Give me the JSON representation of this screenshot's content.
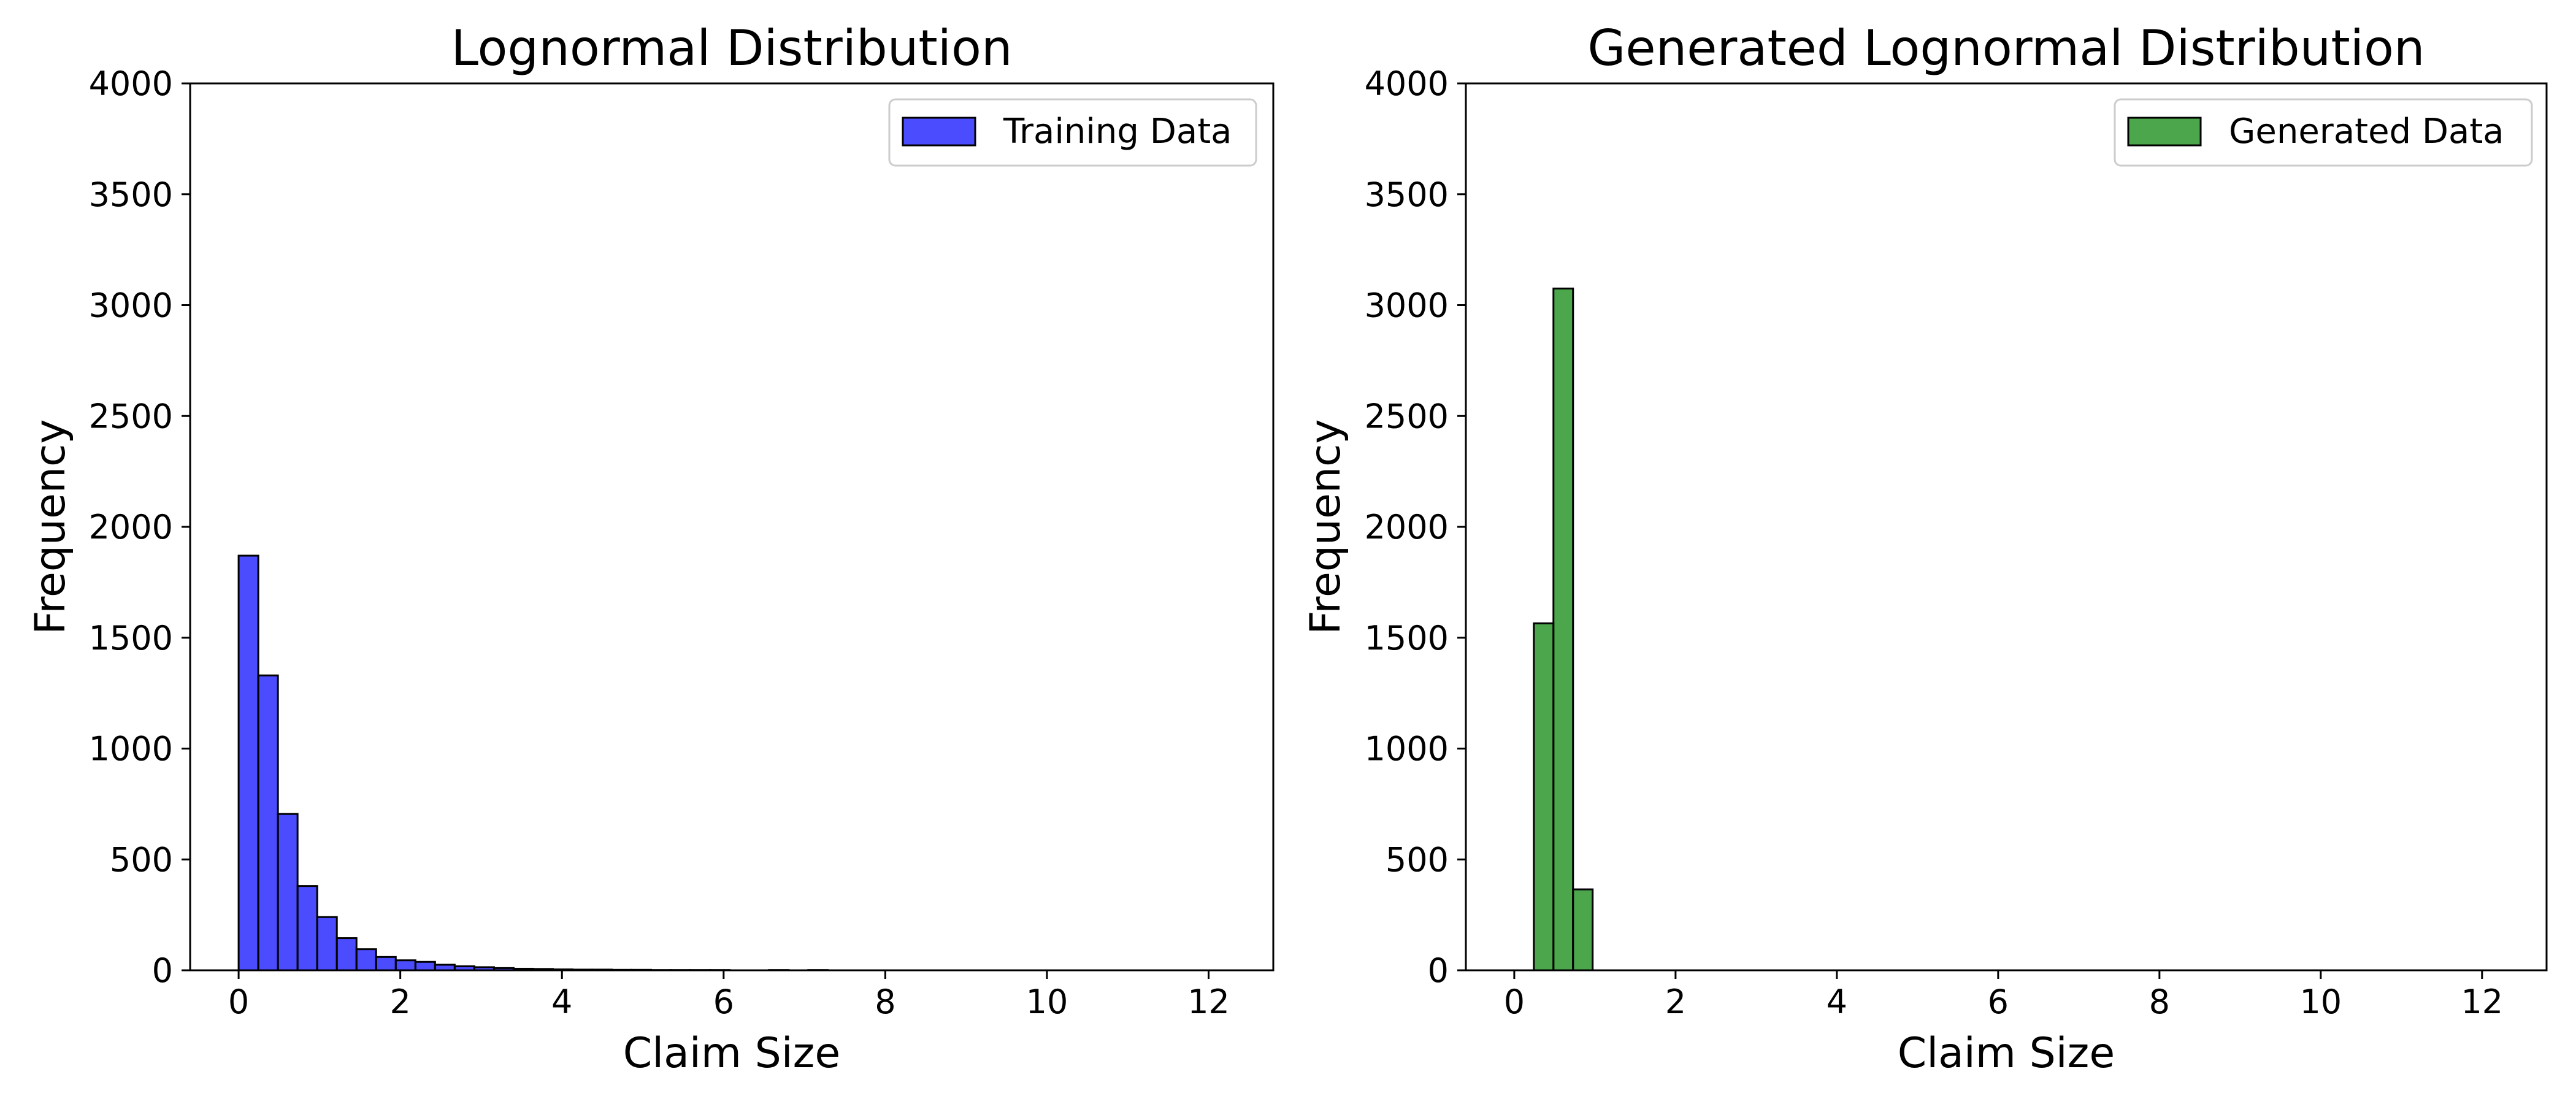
{
  "chart_data": [
    {
      "type": "histogram",
      "title": "Lognormal Distribution",
      "xlabel": "Claim Size",
      "ylabel": "Frequency",
      "xlim": [
        -0.6,
        12.8
      ],
      "ylim": [
        0,
        4000
      ],
      "xticks": [
        0,
        2,
        4,
        6,
        8,
        10,
        12
      ],
      "yticks": [
        0,
        500,
        1000,
        1500,
        2000,
        2500,
        3000,
        3500,
        4000
      ],
      "bin_width": 0.243,
      "legend": {
        "position": "top-right",
        "entries": [
          "Training Data"
        ]
      },
      "grid": false,
      "series": [
        {
          "name": "Training Data",
          "color": "#0000ff",
          "bins": [
            {
              "x0": 0.0,
              "x1": 0.243,
              "count": 1870
            },
            {
              "x0": 0.243,
              "x1": 0.486,
              "count": 1330
            },
            {
              "x0": 0.486,
              "x1": 0.729,
              "count": 705
            },
            {
              "x0": 0.729,
              "x1": 0.972,
              "count": 380
            },
            {
              "x0": 0.972,
              "x1": 1.215,
              "count": 240
            },
            {
              "x0": 1.215,
              "x1": 1.458,
              "count": 145
            },
            {
              "x0": 1.458,
              "x1": 1.701,
              "count": 95
            },
            {
              "x0": 1.701,
              "x1": 1.944,
              "count": 60
            },
            {
              "x0": 1.944,
              "x1": 2.187,
              "count": 45
            },
            {
              "x0": 2.187,
              "x1": 2.43,
              "count": 38
            },
            {
              "x0": 2.43,
              "x1": 2.673,
              "count": 25
            },
            {
              "x0": 2.673,
              "x1": 2.916,
              "count": 18
            },
            {
              "x0": 2.916,
              "x1": 3.159,
              "count": 14
            },
            {
              "x0": 3.159,
              "x1": 3.402,
              "count": 10
            },
            {
              "x0": 3.402,
              "x1": 3.645,
              "count": 7
            },
            {
              "x0": 3.645,
              "x1": 3.888,
              "count": 6
            },
            {
              "x0": 3.888,
              "x1": 4.131,
              "count": 4
            },
            {
              "x0": 4.131,
              "x1": 4.374,
              "count": 3
            },
            {
              "x0": 4.374,
              "x1": 4.617,
              "count": 3
            },
            {
              "x0": 4.617,
              "x1": 4.86,
              "count": 2
            },
            {
              "x0": 4.86,
              "x1": 5.103,
              "count": 2
            },
            {
              "x0": 5.103,
              "x1": 5.346,
              "count": 1
            },
            {
              "x0": 5.346,
              "x1": 5.589,
              "count": 1
            },
            {
              "x0": 5.589,
              "x1": 5.832,
              "count": 1
            },
            {
              "x0": 5.832,
              "x1": 6.075,
              "count": 1
            },
            {
              "x0": 6.561,
              "x1": 6.804,
              "count": 1
            },
            {
              "x0": 7.047,
              "x1": 7.29,
              "count": 1
            }
          ]
        }
      ]
    },
    {
      "type": "histogram",
      "title": "Generated Lognormal Distribution",
      "xlabel": "Claim Size",
      "ylabel": "Frequency",
      "xlim": [
        -0.6,
        12.8
      ],
      "ylim": [
        0,
        4000
      ],
      "xticks": [
        0,
        2,
        4,
        6,
        8,
        10,
        12
      ],
      "yticks": [
        0,
        500,
        1000,
        1500,
        2000,
        2500,
        3000,
        3500,
        4000
      ],
      "bin_width": 0.243,
      "legend": {
        "position": "top-right",
        "entries": [
          "Generated Data"
        ]
      },
      "grid": false,
      "series": [
        {
          "name": "Generated Data",
          "color": "#008000",
          "bins": [
            {
              "x0": 0.243,
              "x1": 0.486,
              "count": 1565
            },
            {
              "x0": 0.486,
              "x1": 0.729,
              "count": 3075
            },
            {
              "x0": 0.729,
              "x1": 0.972,
              "count": 365
            }
          ]
        }
      ]
    }
  ]
}
